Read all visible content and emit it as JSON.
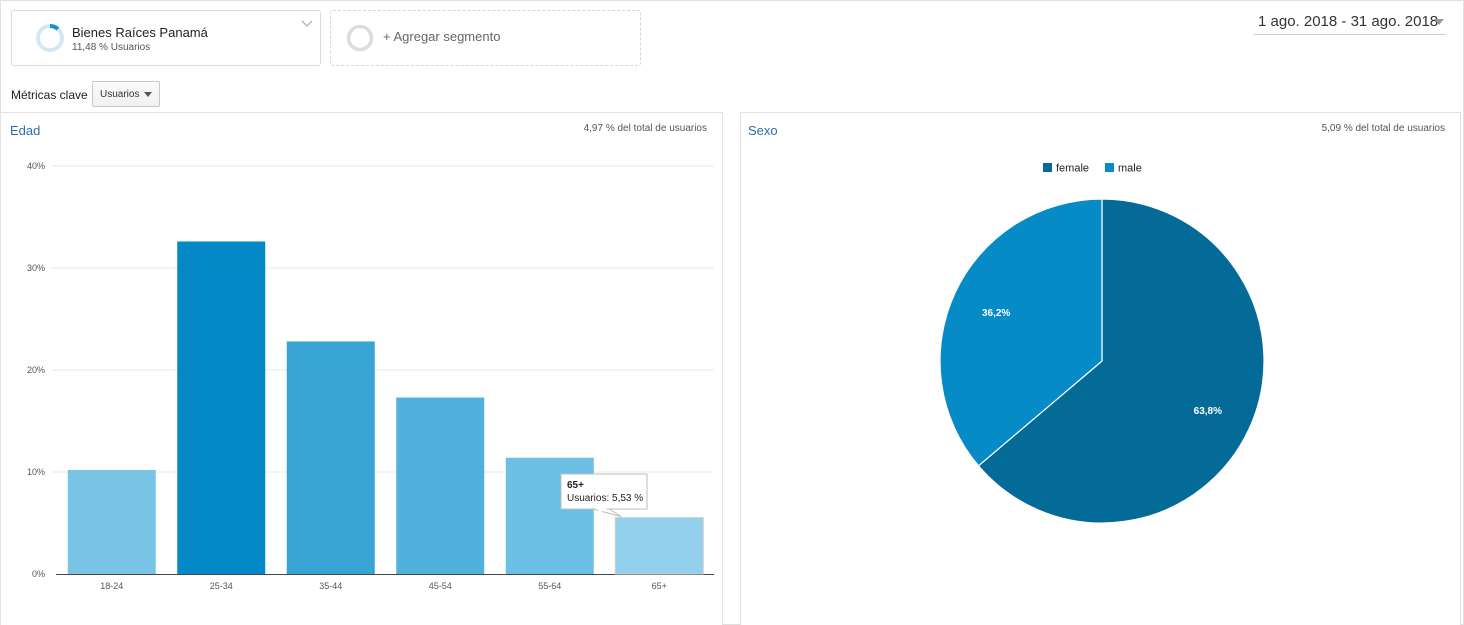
{
  "segments": {
    "active": {
      "name": "Bienes Raíces Panamá",
      "subtitle": "11,48 % Usuarios",
      "ring_fraction": 0.1148
    },
    "add_label": "+ Agregar segmento"
  },
  "date_range": "1 ago. 2018 - 31 ago. 2018",
  "metrics": {
    "label": "Métricas clave",
    "selected": "Usuarios"
  },
  "age_panel": {
    "title": "Edad",
    "note": "4,97 % del total de usuarios",
    "tooltip": {
      "category": "65+",
      "text": "Usuarios: 5,53 %"
    }
  },
  "gender_panel": {
    "title": "Sexo",
    "note": "5,09 % del total de usuarios"
  },
  "colors": {
    "accent_link": "#2c6fad",
    "bar_colors": [
      "#79c4e4",
      "#0488c8",
      "#38a4d4",
      "#52b0dc",
      "#6cc0e6",
      "#92d0ec"
    ],
    "female": "#046b98",
    "male": "#078bc6"
  },
  "chart_data": [
    {
      "type": "bar",
      "title": "Edad",
      "categories": [
        "18-24",
        "25-34",
        "35-44",
        "45-54",
        "55-64",
        "65+"
      ],
      "values": [
        10.2,
        32.6,
        22.8,
        17.3,
        11.4,
        5.53
      ],
      "ylim": [
        0,
        40
      ],
      "yticks": [
        0,
        10,
        20,
        30,
        40
      ],
      "ytick_labels": [
        "0%",
        "10%",
        "20%",
        "30%",
        "40%"
      ],
      "grid": true
    },
    {
      "type": "pie",
      "title": "Sexo",
      "labels": [
        "female",
        "male"
      ],
      "values": [
        63.8,
        36.2
      ],
      "value_labels": [
        "63,8%",
        "36,2%"
      ],
      "legend": "top-center"
    }
  ]
}
